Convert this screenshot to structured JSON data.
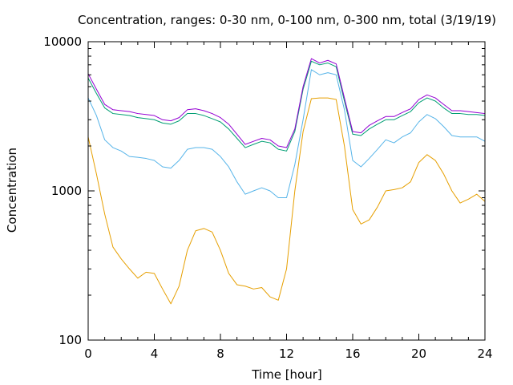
{
  "chart_data": {
    "type": "line",
    "title": "Concentration, ranges: 0-30 nm, 0-100 nm, 0-300 nm, total (3/19/19)",
    "xlabel": "Time [hour]",
    "ylabel": "Concentration",
    "xlim": [
      0,
      24
    ],
    "ylim": [
      100,
      10000
    ],
    "yscale": "log",
    "grid": false,
    "x_ticks": [
      "0",
      "4",
      "8",
      "12",
      "16",
      "20",
      "24"
    ],
    "y_ticks": [
      "100",
      "1000",
      "10000"
    ],
    "series": [
      {
        "color": "#e69f00",
        "x": [
          0,
          0.5,
          1,
          1.5,
          2,
          2.5,
          3,
          3.5,
          4,
          4.5,
          5,
          5.5,
          6,
          6.5,
          7,
          7.5,
          8,
          8.5,
          9,
          9.5,
          10,
          10.5,
          11,
          11.5,
          12,
          12.5,
          13,
          13.5,
          14,
          14.5,
          15,
          15.5,
          16,
          16.5,
          17,
          17.5,
          18,
          18.5,
          19,
          19.5,
          20,
          20.5,
          21,
          21.5,
          22,
          22.5,
          23,
          23.5,
          24
        ],
        "values": [
          2300,
          1300,
          700,
          420,
          350,
          300,
          260,
          285,
          280,
          220,
          175,
          230,
          400,
          540,
          560,
          530,
          400,
          280,
          235,
          230,
          220,
          225,
          195,
          185,
          300,
          1000,
          2500,
          4150,
          4200,
          4200,
          4100,
          2000,
          750,
          600,
          640,
          780,
          1000,
          1020,
          1050,
          1150,
          1550,
          1750,
          1600,
          1300,
          1000,
          830,
          880,
          950,
          850
        ]
      },
      {
        "color": "#56b4e9",
        "x": [
          0,
          0.5,
          1,
          1.5,
          2,
          2.5,
          3,
          3.5,
          4,
          4.5,
          5,
          5.5,
          6,
          6.5,
          7,
          7.5,
          8,
          8.5,
          9,
          9.5,
          10,
          10.5,
          11,
          11.5,
          12,
          12.5,
          13,
          13.5,
          14,
          14.5,
          15,
          15.5,
          16,
          16.5,
          17,
          17.5,
          18,
          18.5,
          19,
          19.5,
          20,
          20.5,
          21,
          21.5,
          22,
          22.5,
          23,
          23.5,
          24
        ],
        "values": [
          4200,
          3200,
          2200,
          1950,
          1850,
          1700,
          1680,
          1650,
          1600,
          1450,
          1420,
          1600,
          1900,
          1950,
          1950,
          1900,
          1700,
          1450,
          1150,
          950,
          1000,
          1050,
          1000,
          900,
          900,
          1500,
          3000,
          6500,
          6000,
          6200,
          6000,
          3500,
          1600,
          1450,
          1650,
          1900,
          2200,
          2100,
          2300,
          2450,
          2900,
          3250,
          3050,
          2700,
          2350,
          2300,
          2300,
          2300,
          2150
        ]
      },
      {
        "color": "#009e73",
        "x": [
          0,
          0.5,
          1,
          1.5,
          2,
          2.5,
          3,
          3.5,
          4,
          4.5,
          5,
          5.5,
          6,
          6.5,
          7,
          7.5,
          8,
          8.5,
          9,
          9.5,
          10,
          10.5,
          11,
          11.5,
          12,
          12.5,
          13,
          13.5,
          14,
          14.5,
          15,
          15.5,
          16,
          16.5,
          17,
          17.5,
          18,
          18.5,
          19,
          19.5,
          20,
          20.5,
          21,
          21.5,
          22,
          22.5,
          23,
          23.5,
          24
        ],
        "values": [
          5700,
          4500,
          3600,
          3300,
          3250,
          3200,
          3100,
          3050,
          3000,
          2850,
          2800,
          2950,
          3300,
          3300,
          3200,
          3050,
          2900,
          2600,
          2250,
          1950,
          2050,
          2150,
          2100,
          1900,
          1850,
          2500,
          4800,
          7400,
          7000,
          7200,
          6800,
          4000,
          2400,
          2350,
          2600,
          2800,
          3000,
          3000,
          3200,
          3400,
          3900,
          4200,
          4000,
          3600,
          3300,
          3300,
          3250,
          3250,
          3200
        ]
      },
      {
        "color": "#9400d3",
        "x": [
          0,
          0.5,
          1,
          1.5,
          2,
          2.5,
          3,
          3.5,
          4,
          4.5,
          5,
          5.5,
          6,
          6.5,
          7,
          7.5,
          8,
          8.5,
          9,
          9.5,
          10,
          10.5,
          11,
          11.5,
          12,
          12.5,
          13,
          13.5,
          14,
          14.5,
          15,
          15.5,
          16,
          16.5,
          17,
          17.5,
          18,
          18.5,
          19,
          19.5,
          20,
          20.5,
          21,
          21.5,
          22,
          22.5,
          23,
          23.5,
          24
        ],
        "values": [
          6100,
          4800,
          3800,
          3500,
          3450,
          3400,
          3300,
          3250,
          3200,
          3000,
          2950,
          3100,
          3500,
          3550,
          3450,
          3300,
          3100,
          2800,
          2400,
          2050,
          2150,
          2250,
          2200,
          2000,
          1950,
          2600,
          5000,
          7700,
          7200,
          7500,
          7100,
          4200,
          2500,
          2450,
          2750,
          2950,
          3150,
          3150,
          3350,
          3550,
          4100,
          4400,
          4200,
          3800,
          3450,
          3450,
          3400,
          3350,
          3300
        ]
      }
    ]
  }
}
